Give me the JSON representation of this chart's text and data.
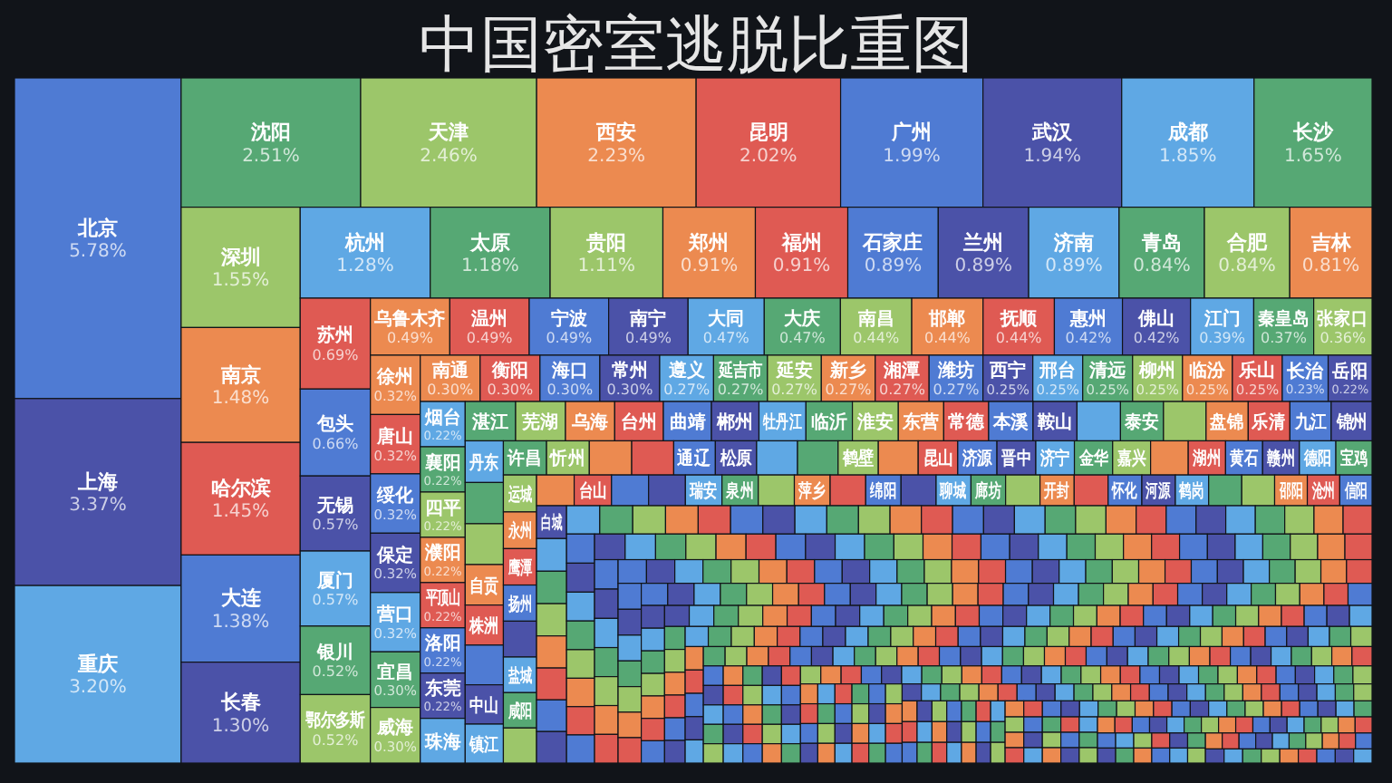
{
  "chart_data": {
    "type": "other",
    "title": "中国密室逃脱比重图",
    "categories": [
      "北京",
      "上海",
      "重庆",
      "沈阳",
      "天津",
      "西安",
      "昆明",
      "广州",
      "武汉",
      "成都",
      "长沙",
      "深圳",
      "南京",
      "哈尔滨",
      "大连",
      "长春",
      "杭州",
      "太原",
      "贵阳",
      "郑州",
      "福州",
      "石家庄",
      "兰州",
      "济南",
      "青岛",
      "合肥",
      "吉林",
      "苏州",
      "包头",
      "无锡",
      "厦门",
      "银川",
      "鄂尔多斯",
      "乌鲁木齐",
      "温州",
      "宁波",
      "南宁",
      "大同",
      "大庆",
      "南昌",
      "邯郸",
      "抚顺",
      "惠州",
      "佛山",
      "江门",
      "秦皇岛",
      "张家口",
      "徐州",
      "唐山",
      "绥化",
      "保定",
      "营口",
      "宜昌",
      "威海",
      "南通",
      "衡阳",
      "海口",
      "常州",
      "遵义",
      "延吉市",
      "延安",
      "新乡",
      "湘潭",
      "潍坊",
      "西宁",
      "邢台",
      "清远",
      "柳州",
      "临汾",
      "乐山",
      "长治",
      "岳阳",
      "烟台",
      "襄阳",
      "四平",
      "濮阳",
      "平顶山",
      "洛阳",
      "东莞",
      "珠海",
      "湛江",
      "芜湖",
      "乌海",
      "台州",
      "曲靖",
      "郴州",
      "牡丹江",
      "临沂",
      "淮安",
      "东营",
      "常德",
      "本溪",
      "鞍山",
      null,
      "泰安",
      null,
      "盘锦",
      "乐清",
      "九江",
      "锦州",
      "丹东",
      null,
      null,
      "自贡",
      "株洲",
      null,
      "中山",
      "镇江",
      "许昌",
      "忻州",
      null,
      null,
      "通辽",
      "松原",
      null,
      null,
      "鹤壁",
      null,
      "昆山",
      "济源",
      "晋中",
      "济宁",
      "金华",
      "嘉兴",
      null,
      "湖州",
      "黄石",
      "赣州",
      "德阳",
      "宝鸡",
      "运城",
      "永州",
      "鹰潭",
      "扬州",
      null,
      "盐城",
      "咸阳",
      null,
      null,
      "台山",
      null,
      null,
      "瑞安",
      "泉州",
      null,
      "萍乡",
      null,
      "绵阳",
      null,
      "聊城",
      "廊坊",
      null,
      "开封",
      null,
      "怀化",
      "河源",
      "鹤岗",
      null,
      null,
      "邵阳",
      "沧州",
      "信阳",
      "白城",
      null,
      null,
      null,
      null,
      null,
      null,
      null,
      null,
      null,
      null,
      null,
      null,
      null,
      null,
      null,
      null,
      null,
      null,
      null,
      null,
      null,
      null,
      null,
      null,
      null,
      null,
      null,
      null,
      null,
      null,
      null,
      null,
      null,
      null,
      null,
      null,
      null,
      null,
      null,
      null,
      null,
      null,
      null,
      null,
      null,
      null,
      null,
      null,
      null,
      null,
      null,
      null,
      null,
      null,
      null,
      null,
      null,
      null,
      null,
      null,
      null,
      null,
      null,
      null,
      null,
      null,
      null,
      null,
      null,
      null,
      null,
      null,
      null,
      null,
      null,
      null,
      null,
      null,
      null,
      null,
      null,
      null,
      null,
      null,
      null,
      null,
      null,
      null,
      null,
      null,
      null,
      null,
      null,
      null,
      null,
      null,
      null,
      null,
      null,
      null,
      null,
      null,
      null,
      null,
      null,
      null,
      null,
      null,
      null,
      null,
      null,
      null,
      null,
      null,
      null,
      null,
      null,
      null,
      null,
      null,
      null,
      null,
      null,
      null,
      null,
      null,
      null,
      null,
      null,
      null,
      null,
      null,
      null,
      null,
      null,
      null,
      null,
      null,
      null,
      null,
      null,
      null,
      null,
      null,
      null,
      null,
      null,
      null,
      null,
      null,
      null,
      null,
      null,
      null,
      null,
      null,
      null,
      null,
      null,
      null,
      null,
      null,
      null,
      null,
      null,
      null,
      null,
      null,
      null,
      null,
      null,
      null,
      null,
      null,
      null,
      null,
      null,
      null,
      null,
      null,
      null,
      null,
      null,
      null,
      null,
      null,
      null,
      null,
      null,
      null,
      null,
      null,
      null,
      null,
      null,
      null,
      null,
      null,
      null,
      null,
      null,
      null,
      null,
      null,
      null,
      null,
      null,
      null,
      null,
      null,
      null,
      null,
      null,
      null,
      null,
      null,
      null,
      null,
      null,
      null,
      null,
      null,
      null,
      null,
      null,
      null,
      null,
      null,
      null,
      null,
      null,
      null,
      null,
      null,
      null,
      null,
      null,
      null,
      null,
      null,
      null,
      null,
      null,
      null,
      null,
      null,
      null,
      null,
      null,
      null,
      null,
      null,
      null,
      null,
      null,
      null,
      null,
      null,
      null,
      null,
      null,
      null,
      null,
      null,
      null,
      null,
      null,
      null,
      null,
      null,
      null,
      null,
      null,
      null,
      null,
      null,
      null,
      null,
      null,
      null,
      null,
      null,
      null,
      null,
      null,
      null,
      null,
      null,
      null,
      null,
      null,
      null,
      null,
      null,
      null,
      null,
      null,
      null,
      null,
      null,
      null,
      null,
      null,
      null,
      null,
      null,
      null,
      null,
      null,
      null,
      null,
      null,
      null,
      null,
      null,
      null,
      null,
      null,
      null,
      null,
      null,
      null,
      null,
      null,
      null,
      null,
      null,
      null,
      null,
      null,
      null,
      null,
      null,
      null,
      null,
      null,
      null,
      null,
      null,
      null,
      null,
      null,
      null,
      null,
      null,
      null,
      null,
      null,
      null,
      null,
      null,
      null,
      null,
      null,
      null,
      null,
      null,
      null,
      null,
      null,
      null,
      null,
      null,
      null,
      null,
      null,
      null,
      null,
      null,
      null,
      null,
      null,
      null,
      null,
      null,
      null,
      null,
      null,
      null,
      null,
      null,
      null,
      null,
      null,
      null,
      null,
      null,
      null,
      null,
      null,
      null,
      null,
      null,
      null,
      null,
      null,
      null,
      null,
      null,
      null,
      null,
      null,
      null,
      null,
      null,
      null,
      null,
      null,
      null,
      null,
      null,
      null,
      null,
      null,
      null,
      null,
      null,
      null,
      null,
      null,
      null,
      null,
      null,
      null,
      null,
      null,
      null,
      null,
      null,
      null,
      null,
      null,
      null,
      null,
      null,
      null,
      null,
      null,
      null,
      null,
      null,
      null,
      null,
      null,
      null,
      null,
      null,
      null,
      null,
      null,
      null,
      null,
      null,
      null,
      null,
      null
    ],
    "values": [
      5.78,
      3.37,
      3.2,
      2.51,
      2.46,
      2.23,
      2.02,
      1.99,
      1.94,
      1.85,
      1.65,
      1.55,
      1.48,
      1.45,
      1.38,
      1.3,
      1.28,
      1.18,
      1.11,
      0.91,
      0.91,
      0.89,
      0.89,
      0.89,
      0.84,
      0.84,
      0.81,
      0.69,
      0.66,
      0.57,
      0.57,
      0.52,
      0.52,
      0.49,
      0.49,
      0.49,
      0.49,
      0.47,
      0.47,
      0.44,
      0.44,
      0.44,
      0.42,
      0.42,
      0.39,
      0.37,
      0.36,
      0.32,
      0.32,
      0.32,
      0.32,
      0.32,
      0.3,
      0.3,
      0.3,
      0.3,
      0.3,
      0.3,
      0.27,
      0.27,
      0.27,
      0.27,
      0.27,
      0.27,
      0.25,
      0.25,
      0.25,
      0.25,
      0.25,
      0.25,
      0.23,
      0.22,
      0.22,
      0.22,
      0.22,
      0.22,
      0.22,
      0.22,
      0.22,
      null,
      null,
      null,
      null,
      null,
      null,
      null,
      null,
      null,
      null,
      null,
      null,
      null,
      null,
      null,
      null,
      null,
      null,
      null,
      null,
      null,
      null,
      null,
      null,
      null,
      null,
      null,
      null,
      null,
      null,
      null,
      null,
      null,
      null,
      null,
      null,
      null,
      null,
      null,
      null,
      null,
      null,
      null,
      null,
      null,
      null,
      null,
      null,
      null,
      null,
      null,
      null,
      null,
      null,
      null,
      null,
      null,
      null,
      null,
      null,
      null,
      null,
      null,
      null,
      null,
      null,
      null,
      null,
      null,
      null,
      null,
      null,
      null,
      null,
      null,
      null,
      null,
      null,
      null,
      null,
      null,
      null,
      null,
      null,
      null,
      null,
      null,
      null,
      null,
      null,
      null,
      null,
      null,
      null,
      null,
      null,
      null,
      null,
      null,
      null,
      null,
      null,
      null,
      null,
      null,
      null,
      null,
      null,
      null,
      null,
      null,
      null,
      null,
      null,
      null,
      null,
      null,
      null,
      null,
      null,
      null,
      null,
      null,
      null,
      null,
      null,
      null,
      null,
      null,
      null,
      null,
      null,
      null,
      null,
      null,
      null,
      null,
      null,
      null,
      null,
      null,
      null,
      null,
      null,
      null,
      null,
      null,
      null,
      null,
      null,
      null,
      null,
      null,
      null,
      null,
      null,
      null,
      null,
      null,
      null,
      null,
      null,
      null,
      null,
      null,
      null,
      null,
      null,
      null,
      null,
      null,
      null,
      null,
      null,
      null,
      null,
      null,
      null,
      null,
      null,
      null,
      null,
      null,
      null,
      null,
      null,
      null,
      null,
      null,
      null,
      null,
      null,
      null,
      null,
      null,
      null,
      null,
      null,
      null,
      null,
      null,
      null,
      null,
      null,
      null,
      null,
      null,
      null,
      null,
      null,
      null,
      null,
      null,
      null,
      null,
      null,
      null,
      null,
      null,
      null,
      null,
      null,
      null,
      null,
      null,
      null,
      null,
      null,
      null,
      null,
      null,
      null,
      null,
      null,
      null,
      null,
      null,
      null,
      null,
      null,
      null,
      null,
      null,
      null,
      null,
      null,
      null,
      null,
      null,
      null,
      null,
      null,
      null,
      null,
      null,
      null,
      null,
      null,
      null,
      null,
      null,
      null,
      null,
      null,
      null,
      null,
      null,
      null,
      null,
      null,
      null,
      null,
      null,
      null,
      null,
      null,
      null,
      null,
      null,
      null,
      null,
      null,
      null,
      null,
      null,
      null,
      null,
      null,
      null,
      null,
      null,
      null,
      null,
      null,
      null,
      null,
      null,
      null,
      null,
      null,
      null,
      null,
      null,
      null,
      null,
      null,
      null,
      null,
      null,
      null,
      null,
      null,
      null,
      null,
      null,
      null,
      null,
      null,
      null,
      null,
      null,
      null,
      null,
      null,
      null,
      null,
      null,
      null,
      null,
      null,
      null,
      null,
      null,
      null,
      null,
      null,
      null,
      null,
      null,
      null,
      null,
      null,
      null,
      null,
      null,
      null,
      null,
      null,
      null,
      null,
      null,
      null,
      null,
      null,
      null,
      null,
      null,
      null,
      null,
      null,
      null,
      null,
      null,
      null,
      null,
      null,
      null,
      null,
      null,
      null,
      null,
      null,
      null,
      null,
      null,
      null,
      null,
      null,
      null,
      null,
      null,
      null,
      null,
      null,
      null,
      null,
      null,
      null,
      null,
      null,
      null,
      null,
      null,
      null,
      null,
      null,
      null,
      null,
      null,
      null,
      null,
      null,
      null,
      null,
      null,
      null,
      null,
      null,
      null,
      null,
      null,
      null,
      null,
      null,
      null,
      null,
      null,
      null,
      null,
      null,
      null,
      null,
      null,
      null,
      null,
      null,
      null,
      null,
      null,
      null,
      null,
      null,
      null,
      null,
      null,
      null,
      null,
      null,
      null,
      null,
      null,
      null,
      null,
      null,
      null,
      null,
      null,
      null,
      null,
      null,
      null,
      null,
      null,
      null,
      null,
      null,
      null,
      null,
      null,
      null,
      null,
      null,
      null,
      null,
      null,
      null,
      null,
      null,
      null,
      null,
      null,
      null,
      null,
      null,
      null,
      null,
      null,
      null,
      null,
      null,
      null,
      null,
      null,
      null,
      null,
      null,
      null,
      null,
      null,
      null,
      null,
      null,
      null,
      null,
      null,
      null,
      null,
      null,
      null,
      null,
      null,
      null,
      null,
      null,
      null,
      null,
      null,
      null,
      null,
      null,
      null,
      null,
      null,
      null,
      null,
      null,
      null,
      null,
      null,
      null,
      null,
      null,
      null,
      null,
      null,
      null,
      null,
      null,
      null,
      null,
      null,
      null,
      null,
      null,
      null,
      null,
      null,
      null,
      null,
      null
    ],
    "value_labels": [
      "5.78%",
      "3.37%",
      "3.20%",
      "2.51%",
      "2.46%",
      "2.23%",
      "2.02%",
      "1.99%",
      "1.94%",
      "1.85%",
      "1.65%",
      "1.55%",
      "1.48%",
      "1.45%",
      "1.38%",
      "1.30%",
      "1.28%",
      "1.18%",
      "1.11%",
      "0.91%",
      "0.91%",
      "0.89%",
      "0.89%",
      "0.89%",
      "0.84%",
      "0.84%",
      "0.81%",
      "0.69%",
      "0.66%",
      "0.57%",
      "0.57%",
      "0.52%",
      "0.52%",
      "0.49%",
      "0.49%",
      "0.49%",
      "0.49%",
      "0.47%",
      "0.47%",
      "0.44%",
      "0.44%",
      "0.44%",
      "0.42%",
      "0.42%",
      "0.39%",
      "0.37%",
      "0.36%",
      "0.32%",
      "0.32%",
      "0.32%",
      "0.32%",
      "0.32%",
      "0.30%",
      "0.30%",
      "0.30%",
      "0.30%",
      "0.30%",
      "0.30%",
      "0.27%",
      "0.27%",
      "0.27%",
      "0.27%",
      "0.27%",
      "0.27%",
      "0.25%",
      "0.25%",
      "0.25%",
      "0.25%",
      "0.25%",
      "0.25%",
      "0.23%",
      "0.22%",
      "0.22%",
      "0.22%",
      "0.22%",
      "0.22%",
      "0.22%",
      "0.22%",
      "0.22%",
      null,
      null,
      null,
      null,
      null,
      null,
      null,
      null,
      null,
      null,
      null,
      null,
      null,
      null,
      null,
      null,
      null,
      null,
      null,
      null,
      null,
      null,
      null,
      null,
      null,
      null,
      null,
      null,
      null,
      null,
      null,
      null,
      null,
      null,
      null,
      null,
      null,
      null,
      null,
      null,
      null,
      null,
      null,
      null,
      null,
      null,
      null,
      null,
      null,
      null,
      null,
      null,
      null,
      null,
      null,
      null,
      null,
      null,
      null,
      null,
      null,
      null,
      null,
      null,
      null,
      null,
      null,
      null,
      null,
      null,
      null,
      null,
      null,
      null,
      null,
      null,
      null,
      null,
      null,
      null,
      null,
      null,
      null,
      null,
      null,
      null,
      null,
      null,
      null,
      null,
      null,
      null,
      null,
      null,
      null,
      null,
      null,
      null,
      null,
      null,
      null,
      null,
      null,
      null,
      null,
      null,
      null,
      null,
      null,
      null,
      null,
      null,
      null,
      null,
      null,
      null,
      null,
      null,
      null,
      null,
      null,
      null,
      null,
      null,
      null,
      null,
      null,
      null,
      null,
      null,
      null,
      null,
      null,
      null,
      null,
      null,
      null,
      null,
      null,
      null,
      null,
      null,
      null,
      null,
      null,
      null,
      null,
      null,
      null,
      null,
      null,
      null,
      null,
      null,
      null,
      null,
      null,
      null,
      null,
      null,
      null,
      null,
      null,
      null,
      null,
      null,
      null,
      null,
      null,
      null,
      null,
      null,
      null,
      null,
      null,
      null,
      null,
      null,
      null,
      null,
      null,
      null,
      null,
      null,
      null,
      null,
      null,
      null,
      null,
      null,
      null,
      null,
      null,
      null,
      null,
      null,
      null,
      null,
      null,
      null,
      null,
      null,
      null,
      null,
      null,
      null,
      null,
      null,
      null,
      null,
      null,
      null,
      null,
      null,
      null,
      null,
      null,
      null,
      null,
      null,
      null,
      null,
      null,
      null,
      null,
      null,
      null,
      null,
      null,
      null,
      null,
      null,
      null,
      null,
      null,
      null,
      null,
      null,
      null,
      null,
      null,
      null,
      null,
      null,
      null,
      null,
      null,
      null,
      null,
      null,
      null,
      null,
      null,
      null,
      null,
      null,
      null,
      null,
      null,
      null,
      null,
      null,
      null,
      null,
      null,
      null,
      null,
      null,
      null,
      null,
      null,
      null,
      null,
      null,
      null,
      null,
      null,
      null,
      null,
      null,
      null,
      null,
      null,
      null,
      null,
      null,
      null,
      null,
      null,
      null,
      null,
      null,
      null,
      null,
      null,
      null,
      null,
      null,
      null,
      null,
      null,
      null,
      null,
      null,
      null,
      null,
      null,
      null,
      null,
      null,
      null,
      null,
      null,
      null,
      null,
      null,
      null,
      null,
      null,
      null,
      null,
      null,
      null,
      null,
      null,
      null,
      null,
      null,
      null,
      null,
      null,
      null,
      null,
      null,
      null,
      null,
      null,
      null,
      null,
      null,
      null,
      null,
      null,
      null,
      null,
      null,
      null,
      null,
      null,
      null,
      null,
      null,
      null,
      null,
      null,
      null,
      null,
      null,
      null,
      null,
      null,
      null,
      null,
      null,
      null,
      null,
      null,
      null,
      null,
      null,
      null,
      null,
      null,
      null,
      null,
      null,
      null,
      null,
      null,
      null,
      null,
      null,
      null,
      null,
      null,
      null,
      null,
      null,
      null,
      null,
      null,
      null,
      null,
      null,
      null,
      null,
      null,
      null,
      null,
      null,
      null,
      null,
      null,
      null,
      null,
      null,
      null,
      null,
      null,
      null,
      null,
      null,
      null,
      null,
      null,
      null,
      null,
      null,
      null,
      null,
      null,
      null,
      null,
      null,
      null,
      null,
      null,
      null,
      null,
      null,
      null,
      null,
      null,
      null,
      null,
      null,
      null,
      null,
      null,
      null,
      null,
      null,
      null,
      null,
      null,
      null,
      null,
      null,
      null,
      null,
      null,
      null,
      null,
      null,
      null,
      null,
      null,
      null,
      null,
      null,
      null,
      null,
      null,
      null,
      null,
      null,
      null,
      null,
      null,
      null,
      null,
      null,
      null,
      null,
      null,
      null,
      null,
      null,
      null,
      null,
      null,
      null,
      null,
      null,
      null,
      null,
      null,
      null,
      null,
      null,
      null,
      null,
      null,
      null,
      null,
      null,
      null,
      null,
      null,
      null,
      null,
      null,
      null,
      null,
      null,
      null,
      null,
      null,
      null,
      null,
      null,
      null,
      null,
      null,
      null,
      null,
      null,
      null,
      null,
      null,
      null,
      null,
      null,
      null,
      null,
      null,
      null,
      null,
      null,
      null,
      null,
      null,
      null,
      null,
      null,
      null,
      null,
      null,
      null,
      null
    ],
    "colors": [
      "#4f7bd3",
      "#4b52a8",
      "#5fa8e4",
      "#56a874",
      "#9cc66a",
      "#ec8a50",
      "#df5a53",
      "#4f7bd3",
      "#4b52a8",
      "#5fa8e4",
      "#56a874",
      "#9cc66a",
      "#ec8a50",
      "#df5a53",
      "#4f7bd3",
      "#4b52a8",
      "#5fa8e4",
      "#56a874",
      "#9cc66a",
      "#ec8a50",
      "#df5a53",
      "#4f7bd3",
      "#4b52a8",
      "#5fa8e4",
      "#56a874",
      "#9cc66a",
      "#ec8a50",
      "#df5a53",
      "#4f7bd3",
      "#4b52a8",
      "#5fa8e4",
      "#56a874",
      "#9cc66a",
      "#ec8a50",
      "#df5a53",
      "#4f7bd3",
      "#4b52a8",
      "#5fa8e4",
      "#56a874",
      "#9cc66a",
      "#ec8a50",
      "#df5a53",
      "#4f7bd3",
      "#4b52a8",
      "#5fa8e4",
      "#56a874",
      "#9cc66a",
      "#ec8a50",
      "#df5a53",
      "#4f7bd3",
      "#4b52a8",
      "#5fa8e4",
      "#56a874",
      "#9cc66a",
      "#ec8a50",
      "#df5a53",
      "#4f7bd3",
      "#4b52a8",
      "#5fa8e4",
      "#56a874",
      "#9cc66a",
      "#ec8a50",
      "#df5a53",
      "#4f7bd3",
      "#4b52a8",
      "#5fa8e4",
      "#56a874",
      "#9cc66a",
      "#ec8a50",
      "#df5a53",
      "#4f7bd3",
      "#4b52a8",
      "#5fa8e4",
      "#56a874",
      "#9cc66a",
      "#ec8a50",
      "#df5a53",
      "#4f7bd3",
      "#4b52a8",
      "#5fa8e4",
      "#56a874",
      "#9cc66a",
      "#ec8a50",
      "#df5a53",
      "#4f7bd3",
      "#4b52a8",
      "#5fa8e4",
      "#56a874",
      "#9cc66a",
      "#ec8a50",
      "#df5a53",
      "#4f7bd3",
      "#4b52a8",
      "#5fa8e4",
      "#56a874",
      "#9cc66a",
      "#ec8a50",
      "#df5a53",
      "#4f7bd3",
      "#4b52a8",
      "#5fa8e4",
      "#56a874",
      "#9cc66a",
      "#ec8a50",
      "#df5a53",
      "#4f7bd3",
      "#4b52a8",
      "#5fa8e4",
      "#56a874",
      "#9cc66a",
      "#ec8a50",
      "#df5a53",
      "#4f7bd3",
      "#4b52a8",
      "#5fa8e4",
      "#56a874",
      "#9cc66a",
      "#ec8a50",
      "#df5a53",
      "#4f7bd3",
      "#4b52a8",
      "#5fa8e4",
      "#56a874",
      "#9cc66a",
      "#ec8a50",
      "#df5a53",
      "#4f7bd3",
      "#4b52a8",
      "#5fa8e4",
      "#56a874",
      "#9cc66a",
      "#ec8a50",
      "#df5a53",
      "#4f7bd3",
      "#4b52a8",
      "#5fa8e4",
      "#56a874",
      "#9cc66a",
      "#ec8a50",
      "#df5a53",
      "#4f7bd3",
      "#4b52a8",
      "#5fa8e4",
      "#56a874",
      "#9cc66a",
      "#ec8a50",
      "#df5a53",
      "#4f7bd3",
      "#4b52a8",
      "#5fa8e4",
      "#56a874",
      "#9cc66a",
      "#ec8a50",
      "#df5a53",
      "#4f7bd3",
      "#4b52a8",
      "#5fa8e4",
      "#56a874",
      "#9cc66a",
      "#ec8a50",
      "#df5a53",
      "#4f7bd3",
      "#4b52a8",
      "#5fa8e4",
      "#56a874",
      "#9cc66a",
      "#ec8a50",
      "#df5a53",
      "#4f7bd3",
      "#4b52a8",
      "#5fa8e4",
      "#56a874",
      "#9cc66a",
      "#ec8a50",
      "#df5a53",
      "#4f7bd3",
      "#4b52a8",
      "#5fa8e4",
      "#56a874",
      "#9cc66a",
      "#ec8a50",
      "#df5a53",
      "#4f7bd3",
      "#4b52a8",
      "#5fa8e4",
      "#56a874",
      "#9cc66a",
      "#ec8a50",
      "#df5a53",
      "#4f7bd3",
      "#4b52a8",
      "#5fa8e4",
      "#56a874",
      "#9cc66a",
      "#ec8a50",
      "#df5a53",
      "#4f7bd3",
      "#4b52a8",
      "#5fa8e4",
      "#56a874",
      "#9cc66a",
      "#ec8a50",
      "#df5a53",
      "#4f7bd3",
      "#4b52a8",
      "#5fa8e4",
      "#56a874",
      "#9cc66a",
      "#ec8a50",
      "#df5a53",
      "#4f7bd3",
      "#4b52a8",
      "#5fa8e4",
      "#56a874",
      "#9cc66a",
      "#ec8a50",
      "#df5a53",
      "#4f7bd3",
      "#4b52a8",
      "#5fa8e4",
      "#56a874",
      "#9cc66a",
      "#ec8a50",
      "#df5a53",
      "#4f7bd3",
      "#4b52a8",
      "#5fa8e4",
      "#56a874",
      "#9cc66a",
      "#ec8a50",
      "#df5a53",
      "#4f7bd3",
      "#4b52a8",
      "#5fa8e4",
      "#56a874",
      "#9cc66a",
      "#ec8a50",
      "#df5a53",
      "#4f7bd3",
      "#4b52a8",
      "#5fa8e4",
      "#56a874",
      "#9cc66a",
      "#ec8a50",
      "#df5a53",
      "#4f7bd3",
      "#4b52a8",
      "#5fa8e4",
      "#56a874",
      "#9cc66a",
      "#ec8a50",
      "#df5a53",
      "#4f7bd3",
      "#4b52a8",
      "#5fa8e4",
      "#56a874",
      "#9cc66a",
      "#ec8a50",
      "#df5a53",
      "#4f7bd3",
      "#4b52a8",
      "#5fa8e4",
      "#56a874",
      "#9cc66a",
      "#ec8a50",
      "#df5a53",
      "#4f7bd3",
      "#4b52a8",
      "#5fa8e4",
      "#56a874",
      "#9cc66a",
      "#ec8a50",
      "#df5a53",
      "#4f7bd3",
      "#4b52a8",
      "#5fa8e4",
      "#56a874",
      "#9cc66a",
      "#ec8a50",
      "#df5a53",
      "#4f7bd3",
      "#4b52a8",
      "#5fa8e4",
      "#56a874",
      "#9cc66a",
      "#ec8a50",
      "#df5a53",
      "#4f7bd3",
      "#4b52a8",
      "#5fa8e4",
      "#56a874",
      "#9cc66a",
      "#ec8a50",
      "#df5a53",
      "#4f7bd3",
      "#4b52a8",
      "#5fa8e4",
      "#56a874",
      "#9cc66a",
      "#ec8a50",
      "#df5a53",
      "#4f7bd3",
      "#4b52a8",
      "#5fa8e4",
      "#56a874",
      "#9cc66a",
      "#ec8a50",
      "#df5a53",
      "#4f7bd3",
      "#4b52a8",
      "#5fa8e4",
      "#56a874",
      "#9cc66a",
      "#ec8a50",
      "#df5a53",
      "#4f7bd3",
      "#4b52a8",
      "#5fa8e4",
      "#56a874",
      "#9cc66a",
      "#ec8a50",
      "#df5a53",
      "#4f7bd3",
      "#4b52a8",
      "#5fa8e4",
      "#56a874",
      "#9cc66a",
      "#ec8a50",
      "#df5a53",
      "#4f7bd3",
      "#4b52a8",
      "#5fa8e4",
      "#56a874",
      "#9cc66a",
      "#ec8a50",
      "#df5a53",
      "#4f7bd3",
      "#4b52a8",
      "#5fa8e4",
      "#56a874",
      "#9cc66a",
      "#ec8a50",
      "#df5a53",
      "#4f7bd3",
      "#4b52a8",
      "#5fa8e4",
      "#56a874",
      "#9cc66a",
      "#ec8a50",
      "#df5a53",
      "#4f7bd3",
      "#4b52a8",
      "#5fa8e4",
      "#56a874",
      "#9cc66a",
      "#ec8a50",
      "#df5a53",
      "#4f7bd3",
      "#4b52a8",
      "#5fa8e4",
      "#56a874",
      "#9cc66a",
      "#ec8a50",
      "#df5a53",
      "#4f7bd3",
      "#4b52a8",
      "#5fa8e4",
      "#56a874",
      "#9cc66a",
      "#ec8a50",
      "#df5a53",
      "#4f7bd3",
      "#4b52a8",
      "#5fa8e4",
      "#56a874",
      "#9cc66a",
      "#ec8a50",
      "#df5a53",
      "#4f7bd3",
      "#4b52a8",
      "#5fa8e4",
      "#56a874",
      "#9cc66a",
      "#ec8a50",
      "#df5a53",
      "#4f7bd3",
      "#4b52a8",
      "#5fa8e4",
      "#56a874",
      "#9cc66a",
      "#ec8a50",
      "#df5a53",
      "#4f7bd3",
      "#4b52a8",
      "#5fa8e4",
      "#56a874",
      "#9cc66a",
      "#ec8a50",
      "#df5a53",
      "#4f7bd3",
      "#4b52a8",
      "#5fa8e4",
      "#56a874",
      "#9cc66a",
      "#ec8a50",
      "#df5a53",
      "#4f7bd3",
      "#4b52a8",
      "#5fa8e4",
      "#56a874",
      "#9cc66a",
      "#ec8a50",
      "#df5a53",
      "#4f7bd3",
      "#4b52a8",
      "#5fa8e4",
      "#56a874",
      "#9cc66a",
      "#ec8a50",
      "#df5a53",
      "#4f7bd3",
      "#4b52a8",
      "#5fa8e4",
      "#56a874",
      "#9cc66a",
      "#ec8a50",
      "#df5a53",
      "#4f7bd3",
      "#4b52a8",
      "#5fa8e4",
      "#56a874",
      "#9cc66a",
      "#ec8a50",
      "#df5a53",
      "#4f7bd3",
      "#4b52a8",
      "#5fa8e4",
      "#56a874",
      "#9cc66a",
      "#ec8a50",
      "#df5a53",
      "#4f7bd3",
      "#4b52a8",
      "#5fa8e4",
      "#56a874",
      "#9cc66a",
      "#ec8a50",
      "#df5a53",
      "#4f7bd3",
      "#4b52a8",
      "#5fa8e4",
      "#56a874",
      "#9cc66a",
      "#ec8a50",
      "#df5a53",
      "#4f7bd3",
      "#4b52a8",
      "#5fa8e4",
      "#56a874",
      "#9cc66a",
      "#ec8a50",
      "#df5a53",
      "#4f7bd3",
      "#4b52a8",
      "#5fa8e4",
      "#56a874",
      "#9cc66a",
      "#ec8a50",
      "#df5a53",
      "#4f7bd3",
      "#4b52a8",
      "#5fa8e4",
      "#56a874",
      "#9cc66a",
      "#ec8a50",
      "#df5a53",
      "#4f7bd3",
      "#4b52a8",
      "#5fa8e4",
      "#56a874",
      "#9cc66a",
      "#ec8a50",
      "#df5a53",
      "#4f7bd3",
      "#4b52a8",
      "#5fa8e4",
      "#56a874",
      "#9cc66a",
      "#ec8a50",
      "#df5a53",
      "#4f7bd3",
      "#4b52a8",
      "#5fa8e4",
      "#56a874",
      "#9cc66a",
      "#ec8a50",
      "#df5a53",
      "#4f7bd3",
      "#4b52a8",
      "#5fa8e4",
      "#56a874",
      "#9cc66a",
      "#ec8a50",
      "#df5a53",
      "#4f7bd3",
      "#4b52a8",
      "#5fa8e4",
      "#56a874",
      "#9cc66a",
      "#ec8a50",
      "#df5a53",
      "#4f7bd3",
      "#4b52a8",
      "#5fa8e4",
      "#56a874",
      "#9cc66a",
      "#ec8a50",
      "#df5a53",
      "#4f7bd3",
      "#4b52a8",
      "#5fa8e4",
      "#56a874",
      "#9cc66a",
      "#ec8a50",
      "#df5a53",
      "#4f7bd3",
      "#4b52a8",
      "#5fa8e4",
      "#56a874",
      "#9cc66a",
      "#ec8a50",
      "#df5a53",
      "#4f7bd3",
      "#4b52a8",
      "#5fa8e4",
      "#56a874",
      "#9cc66a",
      "#ec8a50",
      "#df5a53",
      "#4f7bd3",
      "#4b52a8",
      "#5fa8e4",
      "#56a874",
      "#9cc66a",
      "#ec8a50",
      "#df5a53",
      "#4f7bd3",
      "#4b52a8",
      "#5fa8e4",
      "#56a874",
      "#9cc66a",
      "#ec8a50",
      "#df5a53",
      "#4f7bd3",
      "#4b52a8",
      "#5fa8e4",
      "#56a874",
      "#9cc66a",
      "#ec8a50",
      "#df5a53",
      "#4f7bd3",
      "#4b52a8",
      "#5fa8e4",
      "#56a874",
      "#9cc66a",
      "#ec8a50",
      "#df5a53",
      "#4f7bd3",
      "#4b52a8",
      "#5fa8e4",
      "#56a874",
      "#9cc66a",
      "#ec8a50",
      "#df5a53",
      "#4f7bd3",
      "#4b52a8",
      "#5fa8e4",
      "#56a874",
      "#9cc66a",
      "#ec8a50",
      "#df5a53",
      "#4f7bd3",
      "#4b52a8",
      "#5fa8e4",
      "#56a874",
      "#9cc66a",
      "#ec8a50",
      "#df5a53",
      "#4f7bd3",
      "#4b52a8",
      "#5fa8e4",
      "#56a874",
      "#9cc66a",
      "#ec8a50",
      "#df5a53",
      "#4f7bd3",
      "#4b52a8",
      "#5fa8e4",
      "#56a874",
      "#9cc66a",
      "#ec8a50",
      "#df5a53",
      "#4f7bd3",
      "#4b52a8",
      "#5fa8e4",
      "#56a874",
      "#9cc66a",
      "#ec8a50",
      "#df5a53",
      "#4f7bd3",
      "#4b52a8",
      "#5fa8e4",
      "#56a874",
      "#9cc66a",
      "#ec8a50",
      "#df5a53",
      "#4f7bd3",
      "#4b52a8",
      "#5fa8e4"
    ]
  }
}
